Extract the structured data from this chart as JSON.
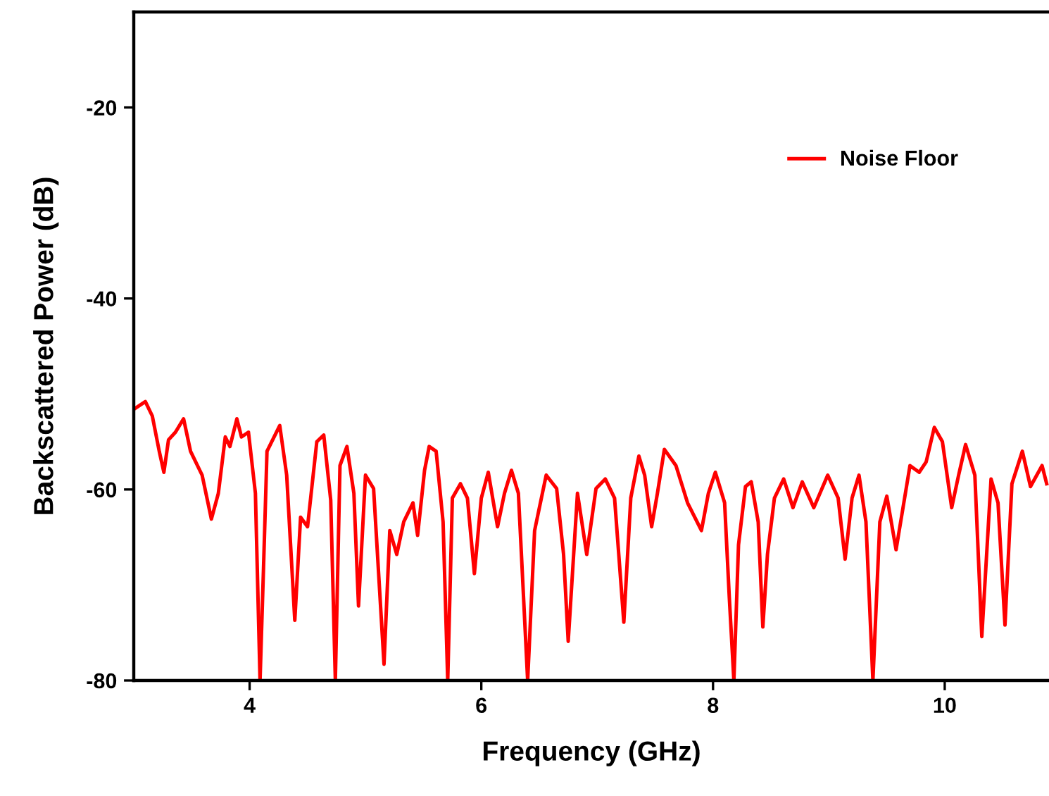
{
  "chart_data": {
    "type": "line",
    "xlabel": "Frequency (GHz)",
    "ylabel": "Backscattered Power (dB)",
    "xlim": [
      3,
      10.9
    ],
    "ylim": [
      -80,
      -10
    ],
    "xticks": [
      4,
      6,
      8,
      10
    ],
    "yticks": [
      -80,
      -60,
      -40,
      -20
    ],
    "grid": false,
    "legend": "top right",
    "marker": "none",
    "line_style": "solid",
    "series": [
      {
        "name": "Noise Floor",
        "color": "#ff0000",
        "x": [
          3.0,
          3.1,
          3.16,
          3.22,
          3.26,
          3.3,
          3.36,
          3.43,
          3.49,
          3.59,
          3.67,
          3.73,
          3.79,
          3.83,
          3.89,
          3.93,
          3.99,
          4.05,
          4.09,
          4.12,
          4.15,
          4.26,
          4.32,
          4.39,
          4.44,
          4.5,
          4.58,
          4.64,
          4.7,
          4.74,
          4.78,
          4.84,
          4.9,
          4.94,
          5.0,
          5.07,
          5.16,
          5.21,
          5.27,
          5.33,
          5.41,
          5.45,
          5.51,
          5.55,
          5.61,
          5.67,
          5.71,
          5.75,
          5.82,
          5.88,
          5.94,
          6.0,
          6.06,
          6.14,
          6.2,
          6.26,
          6.32,
          6.4,
          6.46,
          6.56,
          6.65,
          6.71,
          6.75,
          6.83,
          6.91,
          6.99,
          7.07,
          7.15,
          7.23,
          7.29,
          7.36,
          7.41,
          7.47,
          7.52,
          7.58,
          7.68,
          7.78,
          7.9,
          7.96,
          8.02,
          8.1,
          8.14,
          8.18,
          8.22,
          8.28,
          8.33,
          8.39,
          8.43,
          8.47,
          8.53,
          8.61,
          8.69,
          8.77,
          8.87,
          8.99,
          9.08,
          9.14,
          9.2,
          9.26,
          9.32,
          9.38,
          9.44,
          9.5,
          9.58,
          9.64,
          9.7,
          9.78,
          9.84,
          9.91,
          9.98,
          10.06,
          10.12,
          10.18,
          10.26,
          10.32,
          10.4,
          10.46,
          10.52,
          10.58,
          10.67,
          10.74,
          10.84,
          10.88
        ],
        "values": [
          -51.6,
          -50.8,
          -52.3,
          -56.0,
          -58.2,
          -54.8,
          -54.0,
          -52.6,
          -56.0,
          -58.5,
          -63.1,
          -60.4,
          -54.5,
          -55.5,
          -52.6,
          -54.5,
          -54.0,
          -60.4,
          -80,
          -68.2,
          -56.0,
          -53.3,
          -58.5,
          -73.7,
          -62.9,
          -63.9,
          -55.0,
          -54.3,
          -61.1,
          -80,
          -57.5,
          -55.5,
          -60.4,
          -72.2,
          -58.5,
          -59.9,
          -78.3,
          -64.3,
          -66.8,
          -63.4,
          -61.4,
          -64.8,
          -58.0,
          -55.5,
          -56.0,
          -63.4,
          -80,
          -60.9,
          -59.4,
          -60.9,
          -68.8,
          -60.9,
          -58.2,
          -63.9,
          -60.4,
          -58.0,
          -60.4,
          -80,
          -64.3,
          -58.5,
          -59.9,
          -66.8,
          -75.9,
          -60.4,
          -66.8,
          -59.9,
          -58.9,
          -60.9,
          -73.9,
          -60.9,
          -56.5,
          -58.5,
          -63.9,
          -60.4,
          -55.8,
          -57.5,
          -61.4,
          -64.3,
          -60.4,
          -58.2,
          -61.4,
          -71.2,
          -80,
          -65.8,
          -59.7,
          -59.2,
          -63.4,
          -74.4,
          -66.8,
          -60.9,
          -58.9,
          -61.9,
          -59.2,
          -61.9,
          -58.5,
          -60.9,
          -67.3,
          -60.9,
          -58.5,
          -63.4,
          -80,
          -63.4,
          -60.7,
          -66.3,
          -61.9,
          -57.5,
          -58.2,
          -57.1,
          -53.5,
          -55.0,
          -61.9,
          -58.5,
          -55.3,
          -58.5,
          -75.4,
          -58.9,
          -61.4,
          -74.2,
          -59.4,
          -56.0,
          -59.7,
          -57.5,
          -59.4
        ]
      }
    ]
  }
}
